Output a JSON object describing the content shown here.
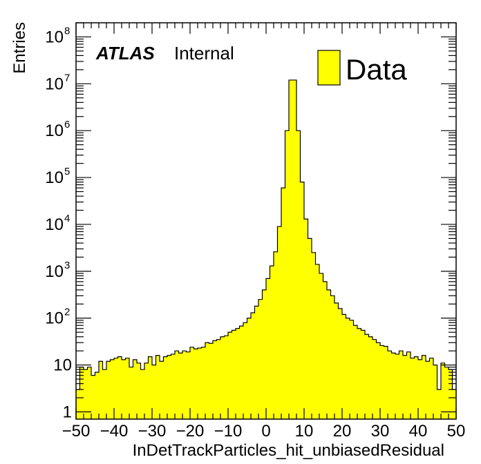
{
  "chart_data": {
    "type": "bar",
    "style": "filled-histogram",
    "fill_color": "#ffff00",
    "line_color": "#000000",
    "xlabel": "InDetTrackParticles_hit_unbiasedResidual",
    "ylabel": "Entries",
    "xlim": [
      -50,
      50
    ],
    "ylim": [
      0.7,
      200000000
    ],
    "yscale": "log",
    "grid": false,
    "x_ticks": [
      {
        "value": -50,
        "label": "−50"
      },
      {
        "value": -40,
        "label": "−40"
      },
      {
        "value": -30,
        "label": "−30"
      },
      {
        "value": -20,
        "label": "−20"
      },
      {
        "value": -10,
        "label": "−10"
      },
      {
        "value": 0,
        "label": "0"
      },
      {
        "value": 10,
        "label": "10"
      },
      {
        "value": 20,
        "label": "20"
      },
      {
        "value": 30,
        "label": "30"
      },
      {
        "value": 40,
        "label": "40"
      },
      {
        "value": 50,
        "label": "50"
      }
    ],
    "y_ticks": [
      {
        "value": 1,
        "base": "1",
        "exp": ""
      },
      {
        "value": 10,
        "base": "10",
        "exp": ""
      },
      {
        "value": 100,
        "base": "10",
        "exp": "2"
      },
      {
        "value": 1000,
        "base": "10",
        "exp": "3"
      },
      {
        "value": 10000,
        "base": "10",
        "exp": "4"
      },
      {
        "value": 100000,
        "base": "10",
        "exp": "5"
      },
      {
        "value": 1000000,
        "base": "10",
        "exp": "6"
      },
      {
        "value": 10000000,
        "base": "10",
        "exp": "7"
      },
      {
        "value": 100000000,
        "base": "10",
        "exp": "8"
      }
    ],
    "legend": {
      "label": "Data",
      "position": "top-right"
    },
    "label": {
      "experiment": "ATLAS",
      "status": "Internal",
      "position": "top-left"
    },
    "bin_edges_start": -50,
    "bin_width": 1,
    "values": [
      3,
      9,
      8,
      9,
      6,
      7,
      12,
      8,
      12,
      13,
      14,
      15,
      13,
      14,
      9,
      13,
      11,
      8,
      11,
      15,
      10,
      16,
      12,
      15,
      16,
      17,
      20,
      18,
      20,
      19,
      24,
      22,
      23,
      24,
      30,
      29,
      33,
      35,
      40,
      42,
      50,
      55,
      60,
      68,
      80,
      100,
      130,
      180,
      250,
      400,
      700,
      1300,
      2600,
      9000,
      60000,
      1000000,
      12000000,
      12000000,
      1000000,
      80000,
      13000,
      5000,
      2500,
      1400,
      900,
      600,
      400,
      300,
      210,
      160,
      120,
      100,
      90,
      70,
      60,
      55,
      45,
      40,
      35,
      30,
      26,
      25,
      20,
      18,
      17,
      20,
      16,
      19,
      14,
      15,
      13,
      16,
      12,
      14,
      10,
      3,
      11,
      9,
      8,
      3
    ]
  }
}
